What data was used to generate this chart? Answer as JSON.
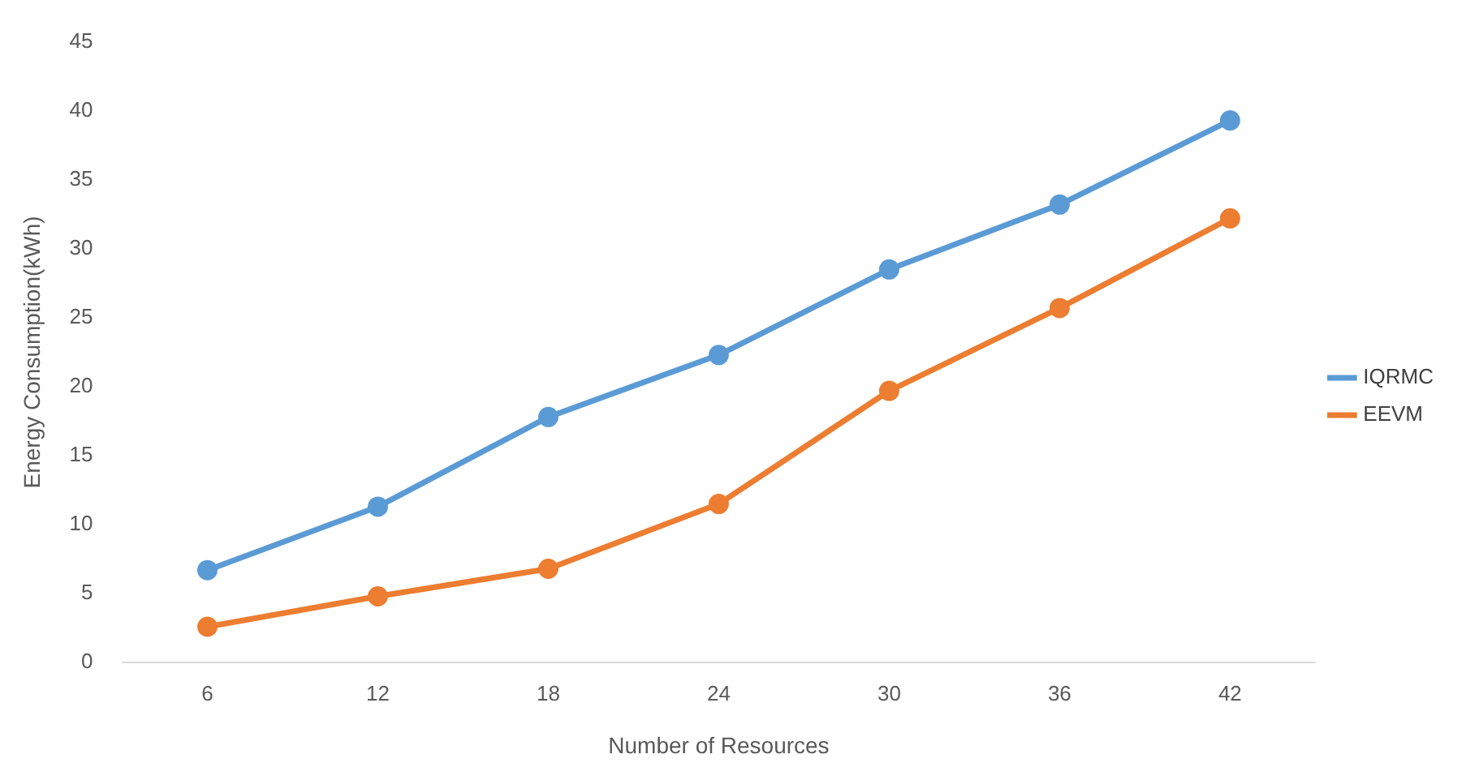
{
  "chart_data": {
    "type": "line",
    "xlabel": "Number of Resources",
    "ylabel": "Energy Consumption(kWh)",
    "categories": [
      "6",
      "12",
      "18",
      "24",
      "30",
      "36",
      "42"
    ],
    "series": [
      {
        "name": "IQRMC",
        "color": "#5b9bd5",
        "values": [
          6.7,
          11.3,
          17.8,
          22.3,
          28.5,
          33.2,
          39.3
        ]
      },
      {
        "name": "EEVM",
        "color": "#ed7d31",
        "values": [
          2.6,
          4.8,
          6.8,
          11.5,
          19.7,
          25.7,
          32.2
        ]
      }
    ],
    "ylim": [
      0,
      45
    ],
    "yticks": [
      0,
      5,
      10,
      15,
      20,
      25,
      30,
      35,
      40,
      45
    ],
    "grid": false,
    "legend": "right",
    "marker": "circle",
    "line_style": "solid"
  }
}
